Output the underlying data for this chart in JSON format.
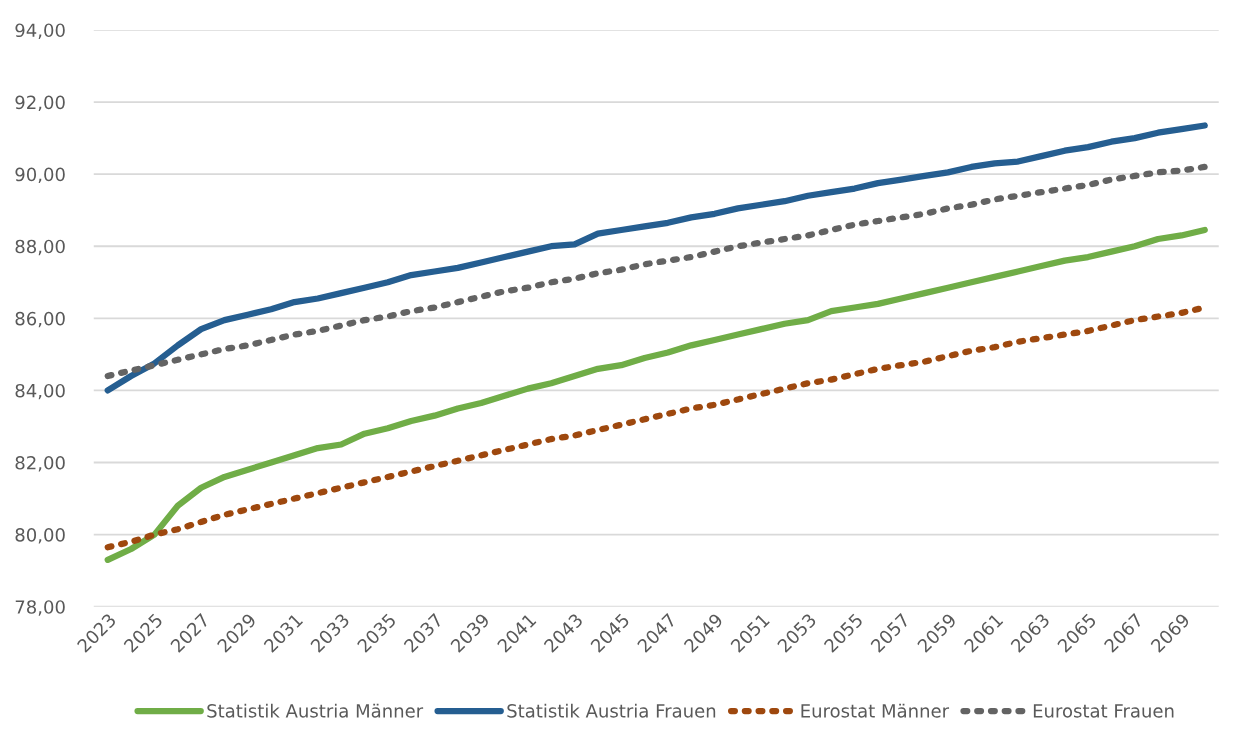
{
  "chart_data": {
    "type": "line",
    "categories": [
      "2023",
      null,
      "2025",
      null,
      "2027",
      null,
      "2029",
      null,
      "2031",
      null,
      "2033",
      null,
      "2035",
      null,
      "2037",
      null,
      "2039",
      null,
      "2041",
      null,
      "2043",
      null,
      "2045",
      null,
      "2047",
      null,
      "2049",
      null,
      "2051",
      null,
      "2053",
      null,
      "2055",
      null,
      "2057",
      null,
      "2059",
      null,
      "2061",
      null,
      "2063",
      null,
      "2065",
      null,
      "2067",
      null,
      "2069",
      null
    ],
    "ylim": [
      78,
      94
    ],
    "yticks": [
      {
        "value": 78,
        "label": "78,00"
      },
      {
        "value": 80,
        "label": "80,00"
      },
      {
        "value": 82,
        "label": "82,00"
      },
      {
        "value": 84,
        "label": "84,00"
      },
      {
        "value": 86,
        "label": "86,00"
      },
      {
        "value": 88,
        "label": "88,00"
      },
      {
        "value": 90,
        "label": "90,00"
      },
      {
        "value": 92,
        "label": "92,00"
      },
      {
        "value": 94,
        "label": "94,00"
      }
    ],
    "grid": "y",
    "legend": "bottom",
    "marker": "none",
    "series": [
      {
        "name": "Statistik Austria Männer",
        "color": "#70ad47",
        "line_style": "solid",
        "values": [
          79.3,
          79.6,
          80.0,
          80.8,
          81.3,
          81.6,
          81.8,
          82.0,
          82.2,
          82.4,
          82.5,
          82.8,
          82.95,
          83.15,
          83.3,
          83.5,
          83.65,
          83.85,
          84.05,
          84.2,
          84.4,
          84.6,
          84.7,
          84.9,
          85.05,
          85.25,
          85.4,
          85.55,
          85.7,
          85.85,
          85.95,
          86.2,
          86.3,
          86.4,
          86.55,
          86.7,
          86.85,
          87.0,
          87.15,
          87.3,
          87.45,
          87.6,
          87.7,
          87.85,
          88.0,
          88.2,
          88.3,
          88.45
        ]
      },
      {
        "name": "Statistik Austria Frauen",
        "color": "#255e91",
        "line_style": "solid",
        "values": [
          84.0,
          84.4,
          84.75,
          85.25,
          85.7,
          85.95,
          86.1,
          86.25,
          86.45,
          86.55,
          86.7,
          86.85,
          87.0,
          87.2,
          87.3,
          87.4,
          87.55,
          87.7,
          87.85,
          88.0,
          88.05,
          88.35,
          88.45,
          88.55,
          88.65,
          88.8,
          88.9,
          89.05,
          89.15,
          89.25,
          89.4,
          89.5,
          89.6,
          89.75,
          89.85,
          89.95,
          90.05,
          90.2,
          90.3,
          90.35,
          90.5,
          90.65,
          90.75,
          90.9,
          91.0,
          91.15,
          91.25,
          91.35
        ]
      },
      {
        "name": "Eurostat Männer",
        "color": "#9e480e",
        "line_style": "dotted",
        "values": [
          79.65,
          79.8,
          80.0,
          80.15,
          80.35,
          80.55,
          80.7,
          80.85,
          81.0,
          81.15,
          81.3,
          81.45,
          81.6,
          81.75,
          81.9,
          82.05,
          82.2,
          82.35,
          82.5,
          82.65,
          82.75,
          82.9,
          83.05,
          83.2,
          83.35,
          83.5,
          83.6,
          83.75,
          83.9,
          84.05,
          84.2,
          84.3,
          84.45,
          84.6,
          84.7,
          84.8,
          84.95,
          85.1,
          85.2,
          85.35,
          85.45,
          85.55,
          85.65,
          85.8,
          85.95,
          86.05,
          86.15,
          86.3
        ]
      },
      {
        "name": "Eurostat Frauen",
        "color": "#636363",
        "line_style": "dotted",
        "values": [
          84.4,
          84.55,
          84.7,
          84.85,
          85.0,
          85.15,
          85.25,
          85.4,
          85.55,
          85.65,
          85.8,
          85.95,
          86.05,
          86.2,
          86.3,
          86.45,
          86.6,
          86.75,
          86.85,
          87.0,
          87.1,
          87.25,
          87.35,
          87.5,
          87.6,
          87.7,
          87.85,
          88.0,
          88.1,
          88.2,
          88.3,
          88.45,
          88.6,
          88.7,
          88.8,
          88.9,
          89.05,
          89.15,
          89.3,
          89.4,
          89.5,
          89.6,
          89.7,
          89.85,
          89.95,
          90.05,
          90.1,
          90.2
        ]
      }
    ]
  }
}
